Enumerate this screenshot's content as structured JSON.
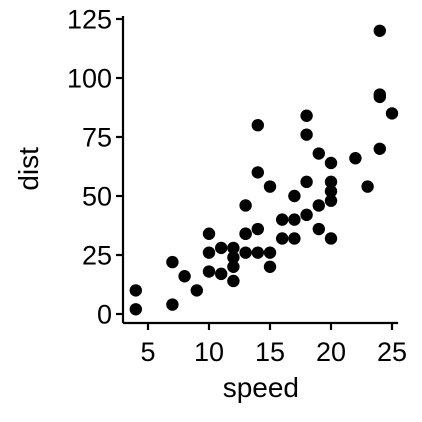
{
  "chart_data": {
    "type": "scatter",
    "xlabel": "speed",
    "ylabel": "dist",
    "xlim": [
      3.0,
      25.5
    ],
    "ylim": [
      -2,
      125
    ],
    "xticks": [
      5,
      10,
      15,
      20,
      25
    ],
    "yticks": [
      0,
      25,
      50,
      75,
      100,
      125
    ],
    "grid": false,
    "point_color": "#000000",
    "series": [
      {
        "points": [
          [
            4,
            2
          ],
          [
            4,
            10
          ],
          [
            7,
            4
          ],
          [
            7,
            22
          ],
          [
            8,
            16
          ],
          [
            9,
            10
          ],
          [
            10,
            18
          ],
          [
            10,
            26
          ],
          [
            10,
            34
          ],
          [
            11,
            17
          ],
          [
            11,
            28
          ],
          [
            12,
            14
          ],
          [
            12,
            20
          ],
          [
            12,
            24
          ],
          [
            12,
            28
          ],
          [
            13,
            26
          ],
          [
            13,
            34
          ],
          [
            13,
            34
          ],
          [
            13,
            46
          ],
          [
            14,
            26
          ],
          [
            14,
            36
          ],
          [
            14,
            60
          ],
          [
            14,
            80
          ],
          [
            15,
            20
          ],
          [
            15,
            26
          ],
          [
            15,
            54
          ],
          [
            16,
            32
          ],
          [
            16,
            40
          ],
          [
            17,
            32
          ],
          [
            17,
            40
          ],
          [
            17,
            50
          ],
          [
            18,
            42
          ],
          [
            18,
            56
          ],
          [
            18,
            76
          ],
          [
            18,
            84
          ],
          [
            19,
            36
          ],
          [
            19,
            46
          ],
          [
            19,
            68
          ],
          [
            20,
            32
          ],
          [
            20,
            48
          ],
          [
            20,
            52
          ],
          [
            20,
            56
          ],
          [
            20,
            64
          ],
          [
            22,
            66
          ],
          [
            23,
            54
          ],
          [
            24,
            70
          ],
          [
            24,
            92
          ],
          [
            24,
            93
          ],
          [
            24,
            120
          ],
          [
            25,
            85
          ]
        ]
      }
    ]
  }
}
